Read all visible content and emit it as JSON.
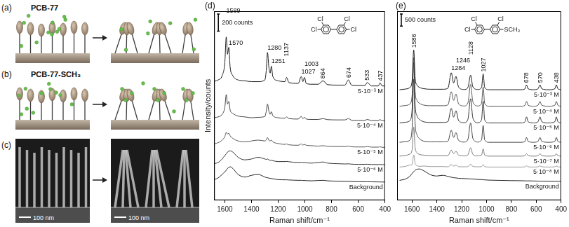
{
  "schematic": {
    "a": {
      "label": "(a)",
      "title": "PCB-77"
    },
    "b": {
      "label": "(b)",
      "title": "PCB-77-SCH₃"
    },
    "c": {
      "label": "(c)",
      "scale_bars": [
        "100 nm",
        "100 nm"
      ]
    }
  },
  "chart_data": [
    {
      "type": "line",
      "title": "(d)",
      "x_label": "Raman shift/cm⁻¹",
      "y_label": "Intensity/counts",
      "xlim": [
        1680,
        400
      ],
      "xticks": [
        1600,
        1400,
        1200,
        1000,
        800,
        600,
        400
      ],
      "ylim": [
        0,
        2200
      ],
      "tick_labels": "x",
      "grid": false,
      "x": [
        1700,
        1650,
        1620,
        1600,
        1589,
        1580,
        1570,
        1560,
        1540,
        1500,
        1450,
        1400,
        1350,
        1300,
        1290,
        1280,
        1270,
        1260,
        1251,
        1240,
        1200,
        1150,
        1137,
        1120,
        1050,
        1027,
        1015,
        1003,
        990,
        950,
        900,
        864,
        830,
        750,
        700,
        674,
        650,
        600,
        550,
        533,
        500,
        450,
        437,
        420,
        400
      ],
      "series": [
        {
          "name": "5·10⁻³ M",
          "color": "#1a1a1a",
          "values": [
            1380,
            1400,
            1450,
            1600,
            1900,
            1700,
            1780,
            1550,
            1450,
            1400,
            1390,
            1380,
            1380,
            1400,
            1500,
            1720,
            1550,
            1480,
            1560,
            1440,
            1390,
            1380,
            1430,
            1370,
            1360,
            1440,
            1380,
            1430,
            1360,
            1350,
            1350,
            1390,
            1345,
            1340,
            1340,
            1400,
            1340,
            1335,
            1335,
            1370,
            1330,
            1330,
            1365,
            1330,
            1330
          ]
        },
        {
          "name": "5·10⁻⁴ M",
          "color": "#444444",
          "values": [
            960,
            970,
            1000,
            1080,
            1230,
            1120,
            1150,
            1050,
            1010,
            980,
            970,
            960,
            965,
            975,
            1030,
            1120,
            1040,
            1000,
            1030,
            985,
            960,
            955,
            970,
            950,
            945,
            975,
            950,
            965,
            945,
            940,
            940,
            950,
            938,
            935,
            935,
            950,
            932,
            930,
            930,
            940,
            928,
            928,
            938,
            926,
            926
          ]
        },
        {
          "name": "5·10⁻⁵ M",
          "color": "#555555",
          "values": [
            650,
            670,
            700,
            740,
            790,
            770,
            780,
            750,
            720,
            690,
            680,
            690,
            700,
            690,
            700,
            730,
            700,
            690,
            700,
            680,
            660,
            650,
            655,
            645,
            640,
            655,
            642,
            650,
            640,
            635,
            630,
            635,
            628,
            625,
            625,
            630,
            622,
            620,
            620,
            625,
            618,
            618,
            622,
            616,
            616
          ]
        },
        {
          "name": "5·10⁻⁶ M",
          "color": "#333333",
          "values": [
            420,
            440,
            480,
            520,
            540,
            560,
            570,
            575,
            560,
            500,
            470,
            480,
            500,
            480,
            475,
            480,
            470,
            465,
            465,
            460,
            450,
            450,
            452,
            448,
            440,
            442,
            438,
            440,
            436,
            432,
            440,
            445,
            432,
            425,
            422,
            424,
            420,
            418,
            418,
            419,
            416,
            415,
            416,
            414,
            414
          ]
        },
        {
          "name": "Background",
          "color": "#222222",
          "values": [
            230,
            260,
            300,
            330,
            350,
            370,
            380,
            390,
            370,
            300,
            270,
            290,
            300,
            270,
            265,
            262,
            258,
            255,
            252,
            250,
            240,
            238,
            238,
            236,
            232,
            232,
            230,
            230,
            228,
            226,
            230,
            232,
            226,
            222,
            220,
            220,
            218,
            216,
            215,
            215,
            214,
            213,
            213,
            212,
            212
          ]
        }
      ],
      "peak_labels": [
        1589,
        1570,
        1280,
        1251,
        1137,
        1027,
        1003,
        864,
        674,
        533,
        437
      ],
      "scale_bar": {
        "value": 200,
        "label": "200 counts"
      },
      "inset": {
        "left": [
          "Cl",
          "Cl"
        ],
        "right": [
          "Cl",
          "Cl"
        ]
      }
    },
    {
      "type": "line",
      "title": "(e)",
      "x_label": "Raman shift/cm⁻¹",
      "xlim": [
        1720,
        400
      ],
      "xticks": [
        1600,
        1400,
        1200,
        1000,
        800,
        600,
        400
      ],
      "ylim": [
        0,
        7800
      ],
      "tick_labels": "x",
      "grid": false,
      "x": [
        1700,
        1650,
        1620,
        1600,
        1586,
        1575,
        1560,
        1540,
        1500,
        1450,
        1400,
        1350,
        1310,
        1284,
        1265,
        1246,
        1225,
        1180,
        1150,
        1128,
        1110,
        1070,
        1040,
        1027,
        1015,
        980,
        900,
        800,
        720,
        690,
        678,
        665,
        620,
        585,
        570,
        555,
        500,
        450,
        438,
        425,
        400
      ],
      "series": [
        {
          "name": "5·10⁻³ M",
          "color": "#1a1a1a",
          "values": [
            4560,
            4590,
            4640,
            4888,
            6200,
            5052,
            4757,
            4658,
            4600,
            4580,
            4580,
            4580,
            4630,
            5260,
            4840,
            5110,
            4670,
            4570,
            4650,
            5160,
            4680,
            4570,
            4658,
            5210,
            4658,
            4560,
            4560,
            4560,
            4560,
            4600,
            4760,
            4600,
            4560,
            4600,
            4760,
            4600,
            4560,
            4600,
            4760,
            4600,
            4560
          ]
        },
        {
          "name": "5·10⁻⁴ M",
          "color": "#555555",
          "values": [
            3880,
            3910,
            3960,
            4280,
            5880,
            4480,
            4120,
            4000,
            3920,
            3900,
            3900,
            3900,
            3940,
            4480,
            4120,
            4380,
            3980,
            3890,
            4015,
            4780,
            4060,
            3890,
            4000,
            4680,
            4000,
            3880,
            3880,
            3880,
            3880,
            3920,
            4080,
            3920,
            3880,
            3920,
            4080,
            3920,
            3880,
            3920,
            4080,
            3920,
            3880
          ]
        },
        {
          "name": "5·10⁻⁵ M",
          "color": "#333333",
          "values": [
            3190,
            3220,
            3270,
            3690,
            5690,
            3940,
            3490,
            3340,
            3230,
            3210,
            3210,
            3210,
            3250,
            3790,
            3430,
            3690,
            3290,
            3200,
            3340,
            4190,
            3390,
            3200,
            3325,
            4090,
            3325,
            3190,
            3190,
            3190,
            3190,
            3240,
            3440,
            3240,
            3190,
            3240,
            3440,
            3240,
            3190,
            3240,
            3440,
            3240,
            3190
          ]
        },
        {
          "name": "5·10⁻⁶ M",
          "color": "#444444",
          "values": [
            2390,
            2420,
            2470,
            2910,
            4990,
            3170,
            2702,
            2546,
            2430,
            2410,
            2410,
            2410,
            2440,
            2890,
            2590,
            2790,
            2470,
            2400,
            2510,
            3190,
            2550,
            2400,
            2495,
            3090,
            2495,
            2390,
            2390,
            2390,
            2390,
            2430,
            2590,
            2430,
            2390,
            2430,
            2590,
            2430,
            2390,
            2430,
            2590,
            2430,
            2390
          ]
        },
        {
          "name": "5·10⁻⁷ M",
          "color": "#777777",
          "values": [
            1820,
            1850,
            1900,
            2060,
            3020,
            2180,
            1964,
            1892,
            1860,
            1840,
            1840,
            1840,
            1845,
            2070,
            1920,
            2020,
            1860,
            1830,
            1872,
            2170,
            1890,
            1830,
            1865,
            2120,
            1865,
            1820,
            1820,
            1820,
            1820,
            1840,
            1920,
            1840,
            1820,
            1840,
            1920,
            1840,
            1820,
            1840,
            1920,
            1840,
            1820
          ]
        },
        {
          "name": "5·10⁻⁸ M",
          "color": "#999999",
          "values": [
            1370,
            1400,
            1450,
            1470,
            1870,
            1520,
            1430,
            1400,
            1410,
            1390,
            1390,
            1390,
            1380,
            1470,
            1410,
            1450,
            1386,
            1380,
            1388,
            1490,
            1394,
            1380,
            1385,
            1470,
            1385,
            1370,
            1370,
            1370,
            1370,
            1380,
            1420,
            1380,
            1370,
            1380,
            1420,
            1380,
            1370,
            1380,
            1420,
            1380,
            1370
          ]
        },
        {
          "name": "Background",
          "color": "#222222",
          "values": [
            820,
            880,
            980,
            1100,
            1180,
            1240,
            1280,
            1290,
            1200,
            1050,
            1000,
            1030,
            980,
            950,
            930,
            920,
            905,
            895,
            885,
            880,
            875,
            860,
            850,
            845,
            840,
            830,
            820,
            810,
            805,
            800,
            800,
            800,
            795,
            790,
            790,
            790,
            785,
            780,
            780,
            780,
            780
          ]
        }
      ],
      "peak_labels": [
        1586,
        1284,
        1246,
        1128,
        1027,
        678,
        570,
        438
      ],
      "scale_bar": {
        "value": 500,
        "label": "500 counts"
      },
      "inset": {
        "left": [
          "Cl",
          "Cl"
        ],
        "right": [
          "Cl",
          "SCH₃"
        ]
      }
    }
  ]
}
